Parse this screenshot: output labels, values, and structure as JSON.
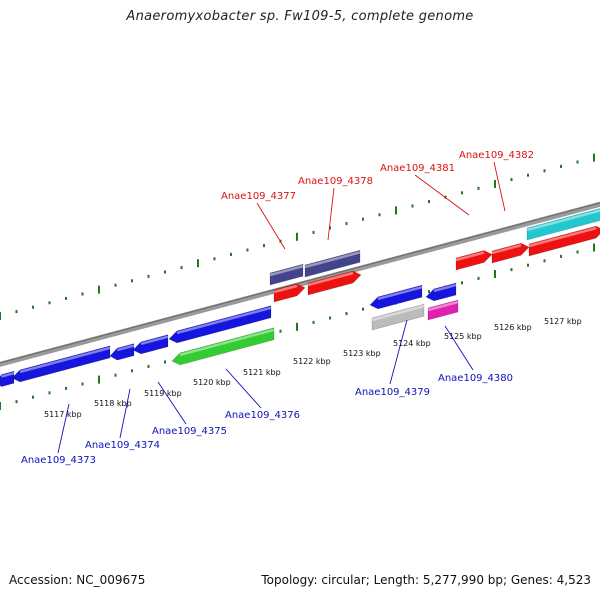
{
  "title": "Anaeromyxobacter sp. Fw109-5, complete genome",
  "footer": {
    "accession": "Accession: NC_009675",
    "stats": "Topology: circular; Length: 5,277,990 bp; Genes: 4,523"
  },
  "colors": {
    "backbone": "#808080",
    "tick": "#1e7a1e",
    "forward_label": "#dd1111",
    "reverse_label": "#1111bb"
  },
  "kbp_ticks": [
    "5117 kbp",
    "5118 kbp",
    "5119 kbp",
    "5120 kbp",
    "5121 kbp",
    "5122 kbp",
    "5123 kbp",
    "5124 kbp",
    "5125 kbp",
    "5126 kbp",
    "5127 kbp"
  ],
  "genes": [
    {
      "name": "blue-gene-a",
      "color": "#1515dd",
      "strand": "reverse",
      "label": ""
    },
    {
      "name": "blue-gene-b",
      "color": "#1515dd",
      "strand": "reverse",
      "label": ""
    },
    {
      "name": "blue-gene-c",
      "color": "#1515dd",
      "strand": "reverse",
      "label": ""
    },
    {
      "name": "blue-gene-d",
      "color": "#1515dd",
      "strand": "reverse",
      "label": ""
    },
    {
      "name": "blue-gene-e",
      "color": "#1515dd",
      "strand": "reverse",
      "label": ""
    },
    {
      "name": "green-gene",
      "color": "#33cc33",
      "strand": "reverse",
      "label": ""
    },
    {
      "name": "navy-gene-a",
      "color": "#44448a",
      "strand": "forward",
      "label": ""
    },
    {
      "name": "navy-gene-b",
      "color": "#44448a",
      "strand": "forward",
      "label": ""
    },
    {
      "name": "red-gene-a",
      "color": "#ee1111",
      "strand": "forward",
      "label": ""
    },
    {
      "name": "red-gene-b",
      "color": "#ee1111",
      "strand": "forward",
      "label": ""
    },
    {
      "name": "blue-gene-f",
      "color": "#1515dd",
      "strand": "reverse",
      "label": ""
    },
    {
      "name": "blue-gene-g",
      "color": "#1515dd",
      "strand": "reverse",
      "label": ""
    },
    {
      "name": "gray-gene",
      "color": "#bbbbbb",
      "strand": "reverse",
      "label": ""
    },
    {
      "name": "magenta-gene",
      "color": "#e020b0",
      "strand": "reverse",
      "label": ""
    },
    {
      "name": "red-gene-c",
      "color": "#ee1111",
      "strand": "forward",
      "label": ""
    },
    {
      "name": "red-gene-d",
      "color": "#ee1111",
      "strand": "forward",
      "label": ""
    },
    {
      "name": "red-gene-e",
      "color": "#ee1111",
      "strand": "forward",
      "label": ""
    },
    {
      "name": "cyan-gene",
      "color": "#22c8d0",
      "strand": "forward",
      "label": ""
    }
  ],
  "labels": [
    {
      "name": "label-anae109-4373",
      "text": "Anae109_4373",
      "strand": "reverse"
    },
    {
      "name": "label-anae109-4374",
      "text": "Anae109_4374",
      "strand": "reverse"
    },
    {
      "name": "label-anae109-4375",
      "text": "Anae109_4375",
      "strand": "reverse"
    },
    {
      "name": "label-anae109-4376",
      "text": "Anae109_4376",
      "strand": "reverse"
    },
    {
      "name": "label-anae109-4377",
      "text": "Anae109_4377",
      "strand": "forward"
    },
    {
      "name": "label-anae109-4378",
      "text": "Anae109_4378",
      "strand": "forward"
    },
    {
      "name": "label-anae109-4379",
      "text": "Anae109_4379",
      "strand": "reverse"
    },
    {
      "name": "label-anae109-4380",
      "text": "Anae109_4380",
      "strand": "reverse"
    },
    {
      "name": "label-anae109-4381",
      "text": "Anae109_4381",
      "strand": "forward"
    },
    {
      "name": "label-anae109-4382",
      "text": "Anae109_4382",
      "strand": "forward"
    }
  ]
}
